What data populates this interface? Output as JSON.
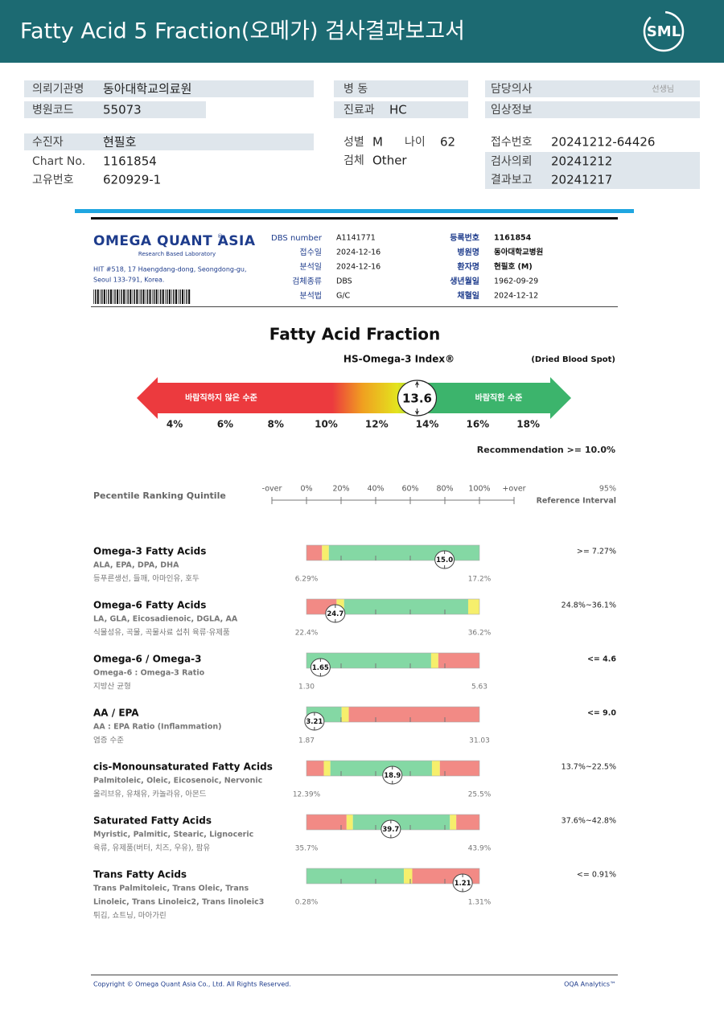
{
  "header": {
    "title": "Fatty Acid 5 Fraction(오메가) 검사결과보고서",
    "logo": "SML"
  },
  "patient": {
    "institution": {
      "label": "의뢰기관명",
      "value": "동아대학교의료원"
    },
    "ward": {
      "label": "병 동"
    },
    "doctor": {
      "label": "담당의사",
      "value": "선생님"
    },
    "hospital_code": {
      "label": "병원코드",
      "value": "55073"
    },
    "department": {
      "label": "진료과",
      "value": "HC"
    },
    "clinical_info": {
      "label": "임상정보"
    },
    "name": {
      "label": "수진자",
      "value": "현필호"
    },
    "sex": {
      "label": "성별",
      "value": "M"
    },
    "age": {
      "label": "나이",
      "value": "62"
    },
    "receipt_no": {
      "label": "접수번호",
      "value": "20241212-64426"
    },
    "chart_no": {
      "label": "Chart No.",
      "value": "1161854"
    },
    "specimen": {
      "label": "검체",
      "value": "Other"
    },
    "request_date": {
      "label": "검사의뢰",
      "value": "20241212"
    },
    "unique_no": {
      "label": "고유번호",
      "value": "620929-1"
    },
    "report_date": {
      "label": "결과보고",
      "value": "20241217"
    }
  },
  "lab": {
    "name": "OMEGA QUANT ASIA",
    "registered": "®",
    "tagline": "Research Based Laboratory",
    "address": [
      "HIT #518, 17 Haengdang-dong, Seongdong-gu,",
      "Seoul 133-791, Korea."
    ],
    "fields_left": [
      {
        "label": "DBS number",
        "value": "A1141771"
      },
      {
        "label": "접수일",
        "value": "2024-12-16"
      },
      {
        "label": "분석일",
        "value": "2024-12-16"
      },
      {
        "label": "검체종류",
        "value": "DBS"
      },
      {
        "label": "분석법",
        "value": "G/C"
      }
    ],
    "fields_right": [
      {
        "label": "등록번호",
        "value": "1161854"
      },
      {
        "label": "병원명",
        "value": "동아대학교병원"
      },
      {
        "label": "환자명",
        "value": "현필호 (M)"
      },
      {
        "label": "생년월일",
        "value": "1962-09-29"
      },
      {
        "label": "채혈일",
        "value": "2024-12-12"
      }
    ]
  },
  "chart_data": {
    "type": "gauge",
    "title": "Fatty Acid Fraction",
    "subtitle": "HS-Omega-3 Index®",
    "note": "(Dried Blood Spot)",
    "value": 13.6,
    "xlim": [
      2.5,
      19.7
    ],
    "xticks": [
      {
        "value": 4,
        "label": "4%"
      },
      {
        "value": 6,
        "label": "6%"
      },
      {
        "value": 8,
        "label": "8%"
      },
      {
        "value": 10,
        "label": "10%"
      },
      {
        "value": 12,
        "label": "12%"
      },
      {
        "value": 14,
        "label": "14%"
      },
      {
        "value": 16,
        "label": "16%"
      },
      {
        "value": 18,
        "label": "18%"
      }
    ],
    "labels": {
      "low": "바람직하지 않은 수준",
      "high": "바람직한 수준"
    },
    "colors": {
      "low": "#ec3a3e",
      "mid": "#e3e41e",
      "high": "#3cb46c"
    },
    "recommendation": "Recommendation  >= 10.0%"
  },
  "percentile": {
    "title": "Pecentile Ranking Quintile",
    "scale": [
      "-over",
      "0%",
      "20%",
      "40%",
      "60%",
      "80%",
      "100%",
      "+over"
    ],
    "ref_title": [
      "95%",
      "Reference Interval"
    ],
    "zone_colors": {
      "red": "#f28a85",
      "yellow": "#f6ef6c",
      "green": "#84d8a4"
    },
    "rows": [
      {
        "name": "Omega-3 Fatty Acids",
        "description": [
          "ALA, EPA, DPA, DHA"
        ],
        "foods": "등푸른생선, 들깨, 아마인유, 호두",
        "range": [
          {
            "value": 6.29,
            "label": "6.29%"
          },
          {
            "value": 17.2,
            "label": "17.2%"
          }
        ],
        "value": 15,
        "value_label": "15.0",
        "reference": ">= 7.27%",
        "zones": [
          {
            "zone": "red",
            "to": 7.27
          },
          {
            "zone": "yellow",
            "to": 7.7
          },
          {
            "zone": "green",
            "to": 17.2
          }
        ]
      },
      {
        "name": "Omega-6 Fatty Acids",
        "description": [
          "LA, GLA, Eicosadienoic, DGLA, AA"
        ],
        "foods": "식물성유, 곡물, 곡물사료 섭취 육류·유제품",
        "range": [
          {
            "value": 22.4,
            "label": "22.4%"
          },
          {
            "value": 36.2,
            "label": "36.2%"
          }
        ],
        "value": 24.7,
        "reference": "24.8%~36.1%",
        "zones": [
          {
            "zone": "red",
            "to": 24.8
          },
          {
            "zone": "yellow",
            "to": 25.4
          },
          {
            "zone": "green",
            "to": 35.3
          },
          {
            "zone": "yellow",
            "to": 36.2
          }
        ]
      },
      {
        "name": "Omega-6 / Omega-3",
        "description": [
          "Omega-6 : Omega-3 Ratio"
        ],
        "foods": "지방산 균형",
        "range": [
          {
            "value": 1.3,
            "label": "1.30"
          },
          5.63
        ],
        "value": 1.65,
        "reference": "<= 4.6",
        "zones": [
          {
            "zone": "green",
            "to": 4.42
          },
          {
            "zone": "yellow",
            "to": 4.6
          },
          {
            "zone": "red",
            "to": 5.63
          }
        ]
      },
      {
        "name": "AA / EPA",
        "description": [
          "AA : EPA Ratio (Inflammation)"
        ],
        "foods": "염증 수준",
        "range": [
          1.87,
          31.03
        ],
        "value": 3.21,
        "reference": "<= 9.0",
        "zones": [
          {
            "zone": "green",
            "to": 7.8
          },
          {
            "zone": "yellow",
            "to": 9
          },
          {
            "zone": "red",
            "to": 31.03
          }
        ]
      },
      {
        "name": "cis-Monounsaturated Fatty Acids",
        "description": [
          "Palmitoleic, Oleic, Eicosenoic, Nervonic"
        ],
        "foods": "올리브유, 유채유, 카놀라유, 아몬드",
        "range": [
          {
            "value": 12.39,
            "label": "12.39%"
          },
          {
            "value": 25.5,
            "label": "25.5%"
          }
        ],
        "value": 18.9,
        "reference": "13.7%~22.5%",
        "zones": [
          {
            "zone": "red",
            "to": 13.7
          },
          {
            "zone": "yellow",
            "to": 14.2
          },
          {
            "zone": "green",
            "to": 21.9
          },
          {
            "zone": "yellow",
            "to": 22.5
          },
          {
            "zone": "red",
            "to": 25.5
          }
        ]
      },
      {
        "name": "Saturated Fatty Acids",
        "description": [
          "Myristic, Palmitic, Stearic, Lignoceric"
        ],
        "foods": "육류, 유제품(버터, 치즈, 우유), 팜유",
        "range": [
          {
            "value": 35.7,
            "label": "35.7%"
          },
          {
            "value": 43.9,
            "label": "43.9%"
          }
        ],
        "value": 39.7,
        "reference": "37.6%~42.8%",
        "zones": [
          {
            "zone": "red",
            "to": 37.6
          },
          {
            "zone": "yellow",
            "to": 37.9
          },
          {
            "zone": "green",
            "to": 42.5
          },
          {
            "zone": "yellow",
            "to": 42.8
          },
          {
            "zone": "red",
            "to": 43.9
          }
        ]
      },
      {
        "name": "Trans Fatty Acids",
        "description": [
          "Trans Palmitoleic, Trans Oleic, Trans",
          "Linoleic, Trans Linoleic2, Trans linoleic3"
        ],
        "foods": "튀김, 쇼트닝, 마아가린",
        "range": [
          {
            "value": 0.28,
            "label": "0.28%"
          },
          {
            "value": 1.31,
            "label": "1.31%"
          }
        ],
        "value": 1.21,
        "reference": "<= 0.91%",
        "zones": [
          {
            "zone": "green",
            "to": 0.86
          },
          {
            "zone": "yellow",
            "to": 0.91
          },
          {
            "zone": "red",
            "to": 1.31
          }
        ]
      }
    ]
  },
  "footer": {
    "copyright": "Copyright © Omega Quant Asia Co., Ltd.  All Rights Reserved.",
    "brand": "OQA Analytics™"
  }
}
